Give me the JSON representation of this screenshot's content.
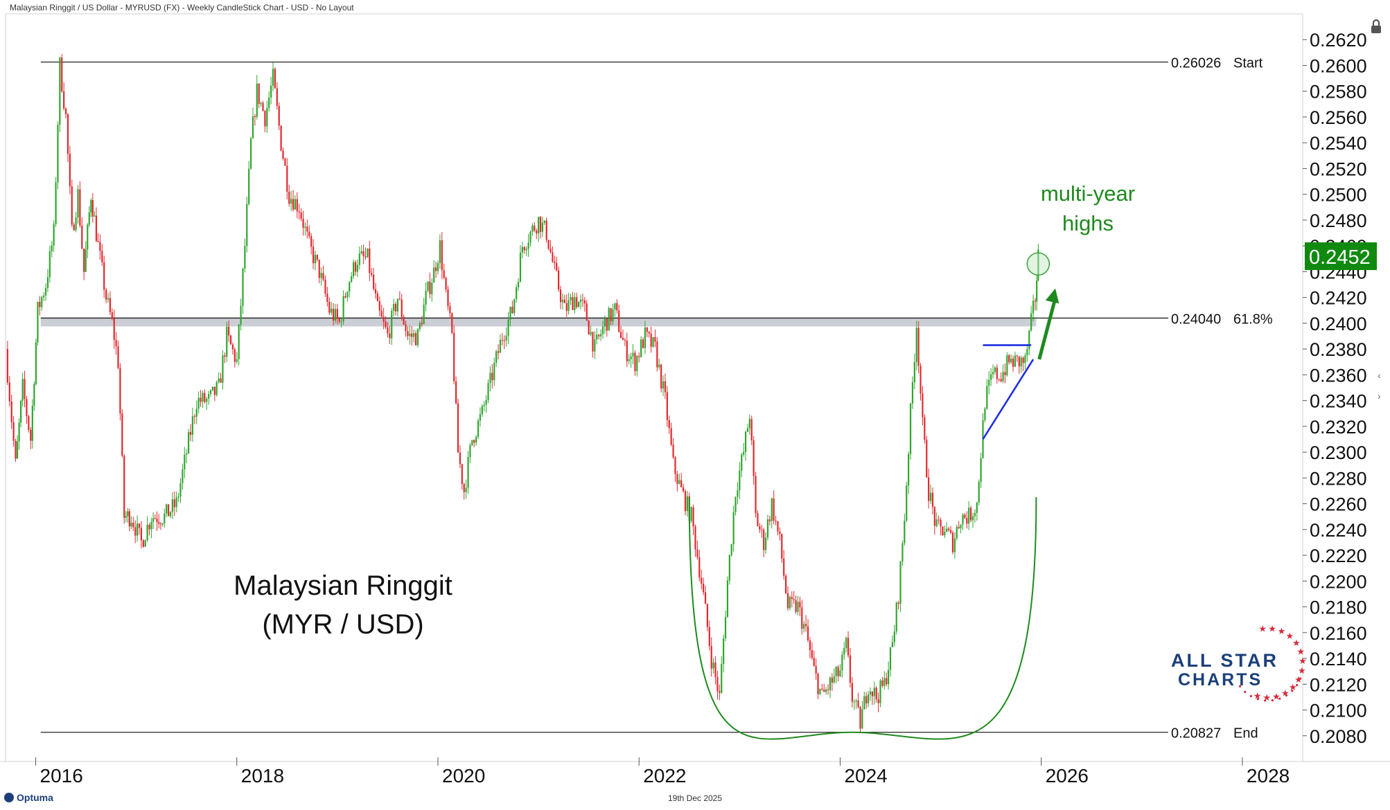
{
  "header": {
    "title": "Malaysian Ringgit / US Dollar - MYRUSD (FX) - Weekly CandleStick Chart - USD - No Layout"
  },
  "footer": {
    "date": "19th Dec 2025",
    "brand": "Optuma"
  },
  "chart_data": {
    "type": "candlestick",
    "title": "Malaysian Ringgit",
    "subtitle": "(MYR / USD)",
    "x_ticks": [
      "2016",
      "2018",
      "2020",
      "2022",
      "2024",
      "2026",
      "2028"
    ],
    "xlim": [
      2015.7,
      2028.6
    ],
    "y_ticks": [
      "0.2620",
      "0.2600",
      "0.2580",
      "0.2560",
      "0.2540",
      "0.2520",
      "0.2500",
      "0.2480",
      "0.2460",
      "0.2440",
      "0.2420",
      "0.2400",
      "0.2380",
      "0.2360",
      "0.2340",
      "0.2320",
      "0.2300",
      "0.2280",
      "0.2260",
      "0.2240",
      "0.2220",
      "0.2200",
      "0.2180",
      "0.2160",
      "0.2140",
      "0.2120",
      "0.2100",
      "0.2080"
    ],
    "ylim": [
      0.206,
      0.264
    ],
    "last_price": "0.2452",
    "colors": {
      "up": "#2fa52f",
      "down": "#e0282d",
      "last_price_bg": "#0f8a0f",
      "annotation": "#1e8a1e",
      "trend": "#1f2fe0",
      "brand_blue": "#1c3f7a",
      "brand_red": "#d62a3a"
    },
    "levels": [
      {
        "value": 0.26026,
        "label": "0.26026",
        "tag": "Start"
      },
      {
        "value": 0.2404,
        "label": "0.24040",
        "tag": "61.8%"
      },
      {
        "value": 0.20827,
        "label": "0.20827",
        "tag": "End"
      }
    ],
    "annotation": {
      "line1": "multi-year",
      "line2": "highs"
    },
    "series": [
      {
        "t": 2015.7,
        "v": 0.238
      },
      {
        "t": 2015.8,
        "v": 0.229
      },
      {
        "t": 2015.87,
        "v": 0.235
      },
      {
        "t": 2015.95,
        "v": 0.231
      },
      {
        "t": 2016.02,
        "v": 0.241
      },
      {
        "t": 2016.1,
        "v": 0.243
      },
      {
        "t": 2016.18,
        "v": 0.247
      },
      {
        "t": 2016.24,
        "v": 0.26
      },
      {
        "t": 2016.3,
        "v": 0.256
      },
      {
        "t": 2016.36,
        "v": 0.247
      },
      {
        "t": 2016.42,
        "v": 0.25
      },
      {
        "t": 2016.48,
        "v": 0.244
      },
      {
        "t": 2016.55,
        "v": 0.25
      },
      {
        "t": 2016.62,
        "v": 0.246
      },
      {
        "t": 2016.7,
        "v": 0.242
      },
      {
        "t": 2016.76,
        "v": 0.24
      },
      {
        "t": 2016.82,
        "v": 0.237
      },
      {
        "t": 2016.88,
        "v": 0.225
      },
      {
        "t": 2016.95,
        "v": 0.225
      },
      {
        "t": 2017.05,
        "v": 0.223
      },
      {
        "t": 2017.15,
        "v": 0.225
      },
      {
        "t": 2017.28,
        "v": 0.225
      },
      {
        "t": 2017.4,
        "v": 0.226
      },
      {
        "t": 2017.5,
        "v": 0.23
      },
      {
        "t": 2017.6,
        "v": 0.234
      },
      {
        "t": 2017.72,
        "v": 0.234
      },
      {
        "t": 2017.82,
        "v": 0.235
      },
      {
        "t": 2017.9,
        "v": 0.239
      },
      {
        "t": 2018.0,
        "v": 0.237
      },
      {
        "t": 2018.08,
        "v": 0.246
      },
      {
        "t": 2018.14,
        "v": 0.254
      },
      {
        "t": 2018.2,
        "v": 0.258
      },
      {
        "t": 2018.28,
        "v": 0.256
      },
      {
        "t": 2018.36,
        "v": 0.259
      },
      {
        "t": 2018.44,
        "v": 0.254
      },
      {
        "t": 2018.52,
        "v": 0.25
      },
      {
        "t": 2018.62,
        "v": 0.249
      },
      {
        "t": 2018.72,
        "v": 0.246
      },
      {
        "t": 2018.82,
        "v": 0.244
      },
      {
        "t": 2018.92,
        "v": 0.241
      },
      {
        "t": 2019.02,
        "v": 0.24
      },
      {
        "t": 2019.1,
        "v": 0.243
      },
      {
        "t": 2019.2,
        "v": 0.245
      },
      {
        "t": 2019.3,
        "v": 0.245
      },
      {
        "t": 2019.4,
        "v": 0.241
      },
      {
        "t": 2019.5,
        "v": 0.239
      },
      {
        "t": 2019.6,
        "v": 0.242
      },
      {
        "t": 2019.7,
        "v": 0.239
      },
      {
        "t": 2019.8,
        "v": 0.239
      },
      {
        "t": 2019.88,
        "v": 0.242
      },
      {
        "t": 2019.96,
        "v": 0.244
      },
      {
        "t": 2020.02,
        "v": 0.246
      },
      {
        "t": 2020.08,
        "v": 0.242
      },
      {
        "t": 2020.14,
        "v": 0.239
      },
      {
        "t": 2020.2,
        "v": 0.23
      },
      {
        "t": 2020.26,
        "v": 0.227
      },
      {
        "t": 2020.34,
        "v": 0.231
      },
      {
        "t": 2020.44,
        "v": 0.233
      },
      {
        "t": 2020.54,
        "v": 0.236
      },
      {
        "t": 2020.64,
        "v": 0.239
      },
      {
        "t": 2020.74,
        "v": 0.241
      },
      {
        "t": 2020.84,
        "v": 0.246
      },
      {
        "t": 2020.92,
        "v": 0.247
      },
      {
        "t": 2021.0,
        "v": 0.248
      },
      {
        "t": 2021.08,
        "v": 0.247
      },
      {
        "t": 2021.16,
        "v": 0.244
      },
      {
        "t": 2021.26,
        "v": 0.241
      },
      {
        "t": 2021.36,
        "v": 0.242
      },
      {
        "t": 2021.46,
        "v": 0.241
      },
      {
        "t": 2021.56,
        "v": 0.238
      },
      {
        "t": 2021.66,
        "v": 0.24
      },
      {
        "t": 2021.76,
        "v": 0.241
      },
      {
        "t": 2021.86,
        "v": 0.238
      },
      {
        "t": 2021.96,
        "v": 0.237
      },
      {
        "t": 2022.06,
        "v": 0.239
      },
      {
        "t": 2022.16,
        "v": 0.238
      },
      {
        "t": 2022.26,
        "v": 0.234
      },
      {
        "t": 2022.34,
        "v": 0.229
      },
      {
        "t": 2022.42,
        "v": 0.227
      },
      {
        "t": 2022.52,
        "v": 0.225
      },
      {
        "t": 2022.62,
        "v": 0.22
      },
      {
        "t": 2022.72,
        "v": 0.214
      },
      {
        "t": 2022.8,
        "v": 0.211
      },
      {
        "t": 2022.88,
        "v": 0.22
      },
      {
        "t": 2022.96,
        "v": 0.227
      },
      {
        "t": 2023.04,
        "v": 0.23
      },
      {
        "t": 2023.1,
        "v": 0.233
      },
      {
        "t": 2023.16,
        "v": 0.225
      },
      {
        "t": 2023.24,
        "v": 0.223
      },
      {
        "t": 2023.32,
        "v": 0.226
      },
      {
        "t": 2023.4,
        "v": 0.223
      },
      {
        "t": 2023.48,
        "v": 0.218
      },
      {
        "t": 2023.58,
        "v": 0.218
      },
      {
        "t": 2023.66,
        "v": 0.216
      },
      {
        "t": 2023.74,
        "v": 0.213
      },
      {
        "t": 2023.82,
        "v": 0.211
      },
      {
        "t": 2023.9,
        "v": 0.212
      },
      {
        "t": 2024.0,
        "v": 0.213
      },
      {
        "t": 2024.06,
        "v": 0.215
      },
      {
        "t": 2024.12,
        "v": 0.211
      },
      {
        "t": 2024.2,
        "v": 0.209
      },
      {
        "t": 2024.28,
        "v": 0.212
      },
      {
        "t": 2024.36,
        "v": 0.211
      },
      {
        "t": 2024.44,
        "v": 0.212
      },
      {
        "t": 2024.52,
        "v": 0.215
      },
      {
        "t": 2024.58,
        "v": 0.219
      },
      {
        "t": 2024.64,
        "v": 0.225
      },
      {
        "t": 2024.7,
        "v": 0.233
      },
      {
        "t": 2024.76,
        "v": 0.24
      },
      {
        "t": 2024.82,
        "v": 0.232
      },
      {
        "t": 2024.88,
        "v": 0.227
      },
      {
        "t": 2024.96,
        "v": 0.224
      },
      {
        "t": 2025.04,
        "v": 0.224
      },
      {
        "t": 2025.12,
        "v": 0.223
      },
      {
        "t": 2025.2,
        "v": 0.225
      },
      {
        "t": 2025.28,
        "v": 0.225
      },
      {
        "t": 2025.36,
        "v": 0.226
      },
      {
        "t": 2025.44,
        "v": 0.234
      },
      {
        "t": 2025.52,
        "v": 0.236
      },
      {
        "t": 2025.6,
        "v": 0.236
      },
      {
        "t": 2025.68,
        "v": 0.237
      },
      {
        "t": 2025.76,
        "v": 0.237
      },
      {
        "t": 2025.84,
        "v": 0.237
      },
      {
        "t": 2025.9,
        "v": 0.24
      },
      {
        "t": 2025.94,
        "v": 0.242
      },
      {
        "t": 2025.97,
        "v": 0.2452
      }
    ],
    "trendlines": [
      {
        "t1": 2025.42,
        "v1": 0.2383,
        "t2": 2025.9,
        "v2": 0.2383
      },
      {
        "t1": 2025.42,
        "v1": 0.231,
        "t2": 2025.92,
        "v2": 0.2372
      }
    ],
    "arrow": {
      "t1": 2025.98,
      "v1": 0.2372,
      "t2": 2026.14,
      "v2": 0.2427
    },
    "highlight": {
      "t": 2025.97,
      "v": 0.2446
    },
    "bowl": {
      "t1": 2022.5,
      "v1": 0.2265,
      "t_mid": 2024.12,
      "v_mid": 0.20827,
      "t2": 2025.95,
      "v2": 0.2265
    }
  }
}
